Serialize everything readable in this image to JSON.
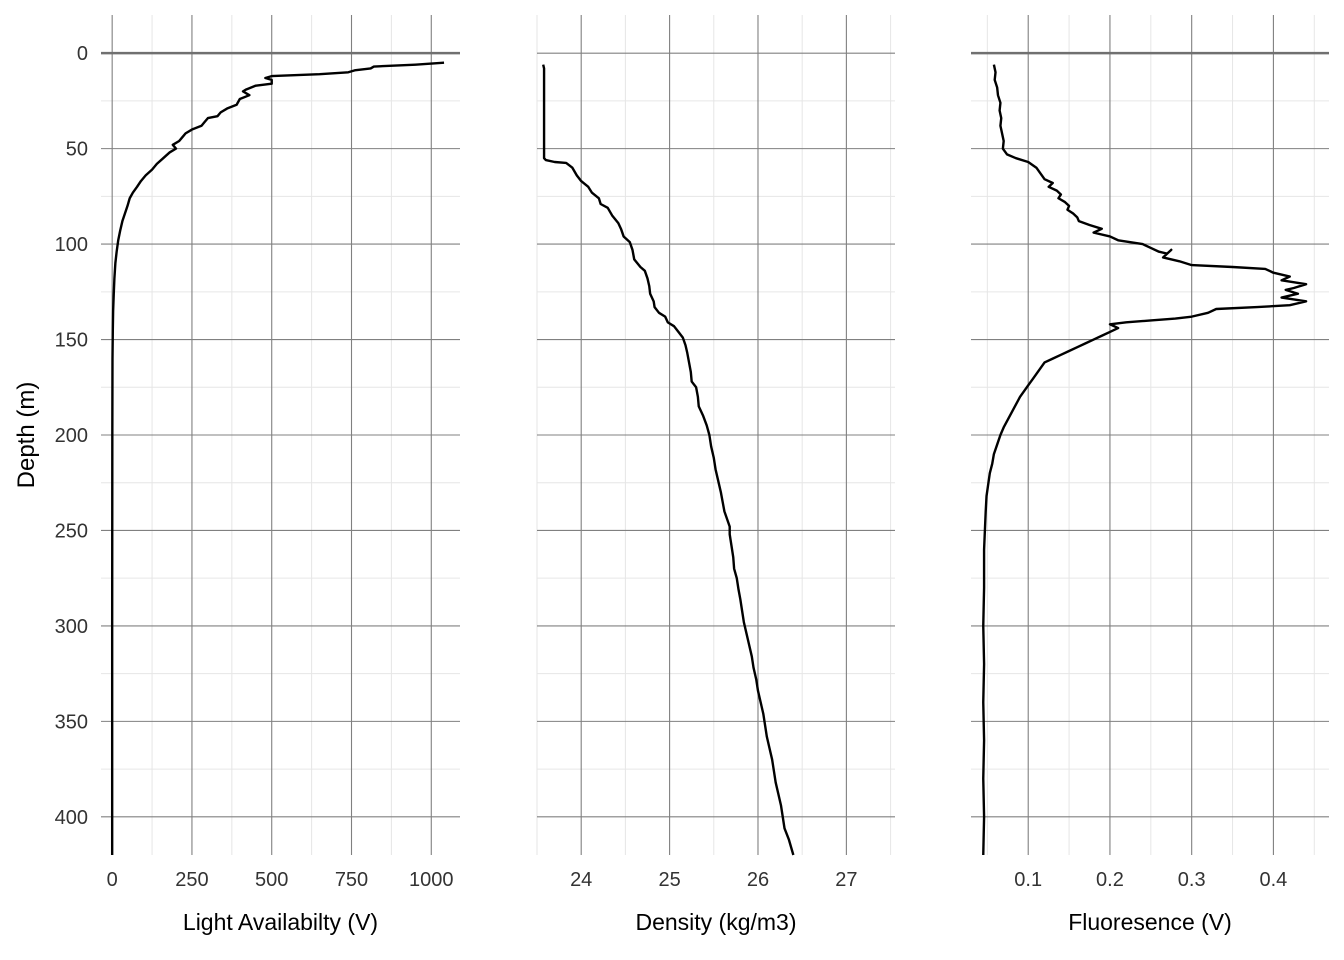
{
  "figure": {
    "ylabel": "Depth (m)"
  },
  "colors": {
    "grid_major": "#808080",
    "grid_minor": "#e6e6e6",
    "line": "#000000",
    "zero_line": "#707070",
    "text": "#333333"
  },
  "chart_data": [
    {
      "type": "line",
      "title": "",
      "xlabel": "Light Availabilty (V)",
      "ylabel": "Depth (m)",
      "xlim": [
        -35,
        1090
      ],
      "ylim": [
        420,
        -20
      ],
      "x_ticks": [
        0,
        250,
        500,
        750,
        1000
      ],
      "x_tick_labels": [
        "0",
        "250",
        "500",
        "750",
        "1000"
      ],
      "y_ticks": [
        0,
        50,
        100,
        150,
        200,
        250,
        300,
        350,
        400
      ],
      "y_tick_labels": [
        "0",
        "50",
        "100",
        "150",
        "200",
        "250",
        "300",
        "350",
        "400"
      ],
      "grid": true,
      "zero_line": true,
      "series": [
        {
          "points": [
            [
              1040,
              5
            ],
            [
              950,
              6
            ],
            [
              820,
              7
            ],
            [
              810,
              8
            ],
            [
              760,
              9
            ],
            [
              740,
              10
            ],
            [
              650,
              11
            ],
            [
              500,
              12
            ],
            [
              480,
              13
            ],
            [
              500,
              14
            ],
            [
              500,
              16
            ],
            [
              450,
              17
            ],
            [
              420,
              19
            ],
            [
              410,
              20
            ],
            [
              430,
              22
            ],
            [
              400,
              24
            ],
            [
              390,
              27
            ],
            [
              360,
              29
            ],
            [
              340,
              31
            ],
            [
              330,
              33
            ],
            [
              300,
              34
            ],
            [
              290,
              36
            ],
            [
              280,
              38
            ],
            [
              250,
              40
            ],
            [
              230,
              42
            ],
            [
              220,
              44
            ],
            [
              210,
              46
            ],
            [
              190,
              48
            ],
            [
              200,
              50
            ],
            [
              180,
              52
            ],
            [
              160,
              55
            ],
            [
              140,
              58
            ],
            [
              125,
              61
            ],
            [
              105,
              64
            ],
            [
              90,
              67
            ],
            [
              78,
              70
            ],
            [
              65,
              73
            ],
            [
              55,
              76
            ],
            [
              48,
              80
            ],
            [
              40,
              84
            ],
            [
              32,
              88
            ],
            [
              25,
              93
            ],
            [
              19,
              98
            ],
            [
              14,
              104
            ],
            [
              10,
              110
            ],
            [
              7,
              118
            ],
            [
              5,
              126
            ],
            [
              3,
              135
            ],
            [
              2,
              145
            ],
            [
              1,
              160
            ],
            [
              0.5,
              200
            ],
            [
              0,
              300
            ],
            [
              0,
              420
            ]
          ]
        }
      ]
    },
    {
      "type": "line",
      "title": "",
      "xlabel": "Density (kg/m3)",
      "xlim": [
        23.5,
        27.55
      ],
      "ylim": [
        420,
        -20
      ],
      "x_ticks": [
        24,
        25,
        26,
        27
      ],
      "x_tick_labels": [
        "24",
        "25",
        "26",
        "27"
      ],
      "y_ticks": [
        0,
        50,
        100,
        150,
        200,
        250,
        300,
        350,
        400
      ],
      "grid": true,
      "zero_line": false,
      "series": [
        {
          "points": [
            [
              23.57,
              6
            ],
            [
              23.58,
              8
            ],
            [
              23.58,
              30
            ],
            [
              23.58,
              55
            ],
            [
              23.6,
              56
            ],
            [
              23.7,
              57
            ],
            [
              23.83,
              57.5
            ],
            [
              23.9,
              60
            ],
            [
              23.95,
              64
            ],
            [
              24.0,
              67
            ],
            [
              24.08,
              70
            ],
            [
              24.12,
              73
            ],
            [
              24.2,
              76
            ],
            [
              24.22,
              79
            ],
            [
              24.3,
              81
            ],
            [
              24.35,
              85
            ],
            [
              24.42,
              89
            ],
            [
              24.45,
              92
            ],
            [
              24.48,
              96
            ],
            [
              24.55,
              99
            ],
            [
              24.58,
              103
            ],
            [
              24.6,
              108
            ],
            [
              24.67,
              112
            ],
            [
              24.72,
              114
            ],
            [
              24.75,
              118
            ],
            [
              24.77,
              122
            ],
            [
              24.78,
              126
            ],
            [
              24.82,
              130
            ],
            [
              24.83,
              133
            ],
            [
              24.88,
              136
            ],
            [
              24.95,
              138
            ],
            [
              24.98,
              141
            ],
            [
              25.05,
              143
            ],
            [
              25.1,
              146
            ],
            [
              25.15,
              149
            ],
            [
              25.18,
              153
            ],
            [
              25.2,
              157
            ],
            [
              25.22,
              162
            ],
            [
              25.24,
              167
            ],
            [
              25.25,
              172
            ],
            [
              25.3,
              175
            ],
            [
              25.32,
              180
            ],
            [
              25.33,
              185
            ],
            [
              25.38,
              190
            ],
            [
              25.42,
              195
            ],
            [
              25.45,
              200
            ],
            [
              25.47,
              206
            ],
            [
              25.5,
              212
            ],
            [
              25.52,
              218
            ],
            [
              25.55,
              224
            ],
            [
              25.58,
              230
            ],
            [
              25.6,
              235
            ],
            [
              25.62,
              240
            ],
            [
              25.65,
              244
            ],
            [
              25.68,
              248
            ],
            [
              25.68,
              252
            ],
            [
              25.7,
              258
            ],
            [
              25.72,
              264
            ],
            [
              25.73,
              270
            ],
            [
              25.76,
              275
            ],
            [
              25.78,
              281
            ],
            [
              25.8,
              286
            ],
            [
              25.82,
              292
            ],
            [
              25.84,
              298
            ],
            [
              25.87,
              304
            ],
            [
              25.9,
              310
            ],
            [
              25.93,
              316
            ],
            [
              25.95,
              322
            ],
            [
              25.98,
              328
            ],
            [
              26.0,
              334
            ],
            [
              26.03,
              340
            ],
            [
              26.06,
              346
            ],
            [
              26.08,
              352
            ],
            [
              26.1,
              358
            ],
            [
              26.13,
              364
            ],
            [
              26.16,
              370
            ],
            [
              26.18,
              376
            ],
            [
              26.2,
              382
            ],
            [
              26.23,
              388
            ],
            [
              26.26,
              394
            ],
            [
              26.28,
              400
            ],
            [
              26.3,
              406
            ],
            [
              26.35,
              412
            ],
            [
              26.4,
              420
            ]
          ]
        }
      ]
    },
    {
      "type": "line",
      "title": "",
      "xlabel": "Fluoresence (V)",
      "xlim": [
        0.03,
        0.468
      ],
      "ylim": [
        420,
        -20
      ],
      "x_ticks": [
        0.1,
        0.2,
        0.3,
        0.4
      ],
      "x_tick_labels": [
        "0.1",
        "0.2",
        "0.3",
        "0.4"
      ],
      "y_ticks": [
        0,
        50,
        100,
        150,
        200,
        250,
        300,
        350,
        400
      ],
      "grid": true,
      "zero_line": true,
      "series": [
        {
          "points": [
            [
              0.058,
              6
            ],
            [
              0.06,
              10
            ],
            [
              0.059,
              14
            ],
            [
              0.062,
              18
            ],
            [
              0.063,
              22
            ],
            [
              0.066,
              26
            ],
            [
              0.065,
              30
            ],
            [
              0.067,
              34
            ],
            [
              0.066,
              38
            ],
            [
              0.068,
              42
            ],
            [
              0.07,
              46
            ],
            [
              0.069,
              50
            ],
            [
              0.074,
              53
            ],
            [
              0.085,
              55
            ],
            [
              0.1,
              57
            ],
            [
              0.11,
              60
            ],
            [
              0.115,
              63
            ],
            [
              0.12,
              66
            ],
            [
              0.13,
              68
            ],
            [
              0.125,
              70
            ],
            [
              0.135,
              72
            ],
            [
              0.14,
              74
            ],
            [
              0.137,
              76
            ],
            [
              0.145,
              78
            ],
            [
              0.15,
              80
            ],
            [
              0.148,
              82
            ],
            [
              0.155,
              84
            ],
            [
              0.16,
              86
            ],
            [
              0.162,
              88
            ],
            [
              0.175,
              90
            ],
            [
              0.19,
              92
            ],
            [
              0.18,
              94
            ],
            [
              0.2,
              96
            ],
            [
              0.21,
              98
            ],
            [
              0.24,
              100
            ],
            [
              0.25,
              102
            ],
            [
              0.26,
              104
            ],
            [
              0.27,
              105
            ],
            [
              0.275,
              103
            ],
            [
              0.265,
              107
            ],
            [
              0.285,
              109
            ],
            [
              0.3,
              111
            ],
            [
              0.35,
              112
            ],
            [
              0.39,
              113
            ],
            [
              0.4,
              115
            ],
            [
              0.42,
              117
            ],
            [
              0.41,
              119
            ],
            [
              0.44,
              121
            ],
            [
              0.425,
              123
            ],
            [
              0.415,
              124
            ],
            [
              0.43,
              126
            ],
            [
              0.41,
              128
            ],
            [
              0.44,
              130
            ],
            [
              0.42,
              132
            ],
            [
              0.38,
              133
            ],
            [
              0.33,
              134
            ],
            [
              0.32,
              136
            ],
            [
              0.3,
              138
            ],
            [
              0.28,
              139
            ],
            [
              0.25,
              140
            ],
            [
              0.22,
              141
            ],
            [
              0.2,
              142
            ],
            [
              0.21,
              144
            ],
            [
              0.2,
              146
            ],
            [
              0.19,
              148
            ],
            [
              0.18,
              150
            ],
            [
              0.17,
              152
            ],
            [
              0.16,
              154
            ],
            [
              0.15,
              156
            ],
            [
              0.14,
              158
            ],
            [
              0.13,
              160
            ],
            [
              0.12,
              162
            ],
            [
              0.115,
              165
            ],
            [
              0.11,
              168
            ],
            [
              0.105,
              171
            ],
            [
              0.1,
              174
            ],
            [
              0.095,
              177
            ],
            [
              0.09,
              180
            ],
            [
              0.085,
              184
            ],
            [
              0.08,
              188
            ],
            [
              0.075,
              192
            ],
            [
              0.07,
              196
            ],
            [
              0.066,
              200
            ],
            [
              0.062,
              205
            ],
            [
              0.058,
              210
            ],
            [
              0.056,
              215
            ],
            [
              0.053,
              220
            ],
            [
              0.051,
              226
            ],
            [
              0.049,
              232
            ],
            [
              0.048,
              240
            ],
            [
              0.047,
              250
            ],
            [
              0.046,
              260
            ],
            [
              0.046,
              280
            ],
            [
              0.045,
              300
            ],
            [
              0.046,
              320
            ],
            [
              0.045,
              340
            ],
            [
              0.046,
              360
            ],
            [
              0.045,
              380
            ],
            [
              0.046,
              400
            ],
            [
              0.045,
              420
            ]
          ]
        }
      ]
    }
  ]
}
